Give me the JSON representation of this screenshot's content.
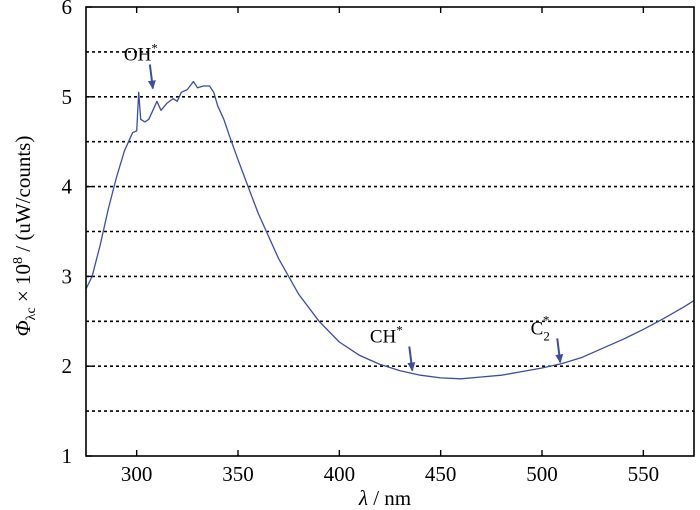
{
  "chart_data": {
    "type": "line",
    "title": "",
    "xlabel": {
      "symbol": "λ",
      "unit": " / nm"
    },
    "ylabel": {
      "symbol": "Φ",
      "subscript": "λc",
      "multiplier": " × 10",
      "exponent": "8",
      "unit": " / (uW/counts)"
    },
    "xlim": [
      275,
      575
    ],
    "ylim": [
      1,
      6
    ],
    "x_ticks": [
      300,
      350,
      400,
      450,
      500,
      550
    ],
    "y_ticks": [
      1,
      2,
      3,
      4,
      5,
      6
    ],
    "grid": {
      "style": "dotted",
      "horizontal_lines": [
        1.5,
        2,
        2.5,
        3,
        3.5,
        4,
        4.5,
        5,
        5.5
      ]
    },
    "line_color": "#3b4ea0",
    "arrow_color": "#3b4ea0",
    "series": [
      {
        "x": [
          275,
          278,
          282,
          286,
          290,
          294,
          298,
          300,
          301,
          302,
          304,
          306,
          308,
          310,
          312,
          315,
          318,
          320,
          322,
          325,
          328,
          330,
          333,
          336,
          338,
          340,
          343,
          346,
          350,
          355,
          360,
          370,
          380,
          390,
          400,
          410,
          420,
          430,
          440,
          450,
          460,
          470,
          480,
          490,
          500,
          510,
          520,
          530,
          540,
          550,
          560,
          570,
          575
        ],
        "y": [
          2.86,
          3.0,
          3.35,
          3.75,
          4.1,
          4.4,
          4.6,
          4.62,
          5.05,
          4.75,
          4.72,
          4.75,
          4.85,
          4.95,
          4.85,
          4.93,
          4.98,
          4.95,
          5.05,
          5.08,
          5.17,
          5.1,
          5.12,
          5.12,
          5.05,
          4.9,
          4.75,
          4.55,
          4.3,
          4.0,
          3.7,
          3.2,
          2.8,
          2.5,
          2.27,
          2.12,
          2.02,
          1.95,
          1.9,
          1.87,
          1.86,
          1.88,
          1.9,
          1.94,
          1.98,
          2.03,
          2.1,
          2.2,
          2.3,
          2.41,
          2.53,
          2.66,
          2.73
        ]
      }
    ],
    "annotations": [
      {
        "name": "oh",
        "label": "OH",
        "sup": "*",
        "sub": "",
        "arrow_to": [
          308,
          5.07
        ]
      },
      {
        "name": "ch",
        "label": "CH",
        "sup": "*",
        "sub": "",
        "arrow_to": [
          436,
          1.93
        ]
      },
      {
        "name": "c2",
        "label": "C",
        "sup": "*",
        "sub": "2",
        "arrow_to": [
          509,
          2.02
        ]
      }
    ]
  }
}
